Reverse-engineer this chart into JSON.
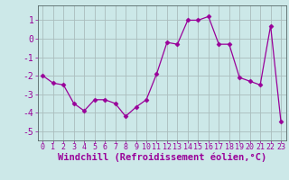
{
  "x": [
    0,
    1,
    2,
    3,
    4,
    5,
    6,
    7,
    8,
    9,
    10,
    11,
    12,
    13,
    14,
    15,
    16,
    17,
    18,
    19,
    20,
    21,
    22,
    23
  ],
  "y": [
    -2.0,
    -2.4,
    -2.5,
    -3.5,
    -3.9,
    -3.3,
    -3.3,
    -3.5,
    -4.2,
    -3.7,
    -3.3,
    -1.9,
    -0.2,
    -0.3,
    1.0,
    1.0,
    1.2,
    -0.3,
    -0.3,
    -2.1,
    -2.3,
    -2.5,
    0.7,
    -4.5
  ],
  "line_color": "#990099",
  "marker": "D",
  "marker_size": 2.5,
  "bg_color": "#cce8e8",
  "grid_color": "#aabcbc",
  "xlabel": "Windchill (Refroidissement éolien,°C)",
  "ylim": [
    -5.5,
    1.8
  ],
  "xlim": [
    -0.5,
    23.5
  ],
  "yticks": [
    -5,
    -4,
    -3,
    -2,
    -1,
    0,
    1
  ],
  "xticks": [
    0,
    1,
    2,
    3,
    4,
    5,
    6,
    7,
    8,
    9,
    10,
    11,
    12,
    13,
    14,
    15,
    16,
    17,
    18,
    19,
    20,
    21,
    22,
    23
  ],
  "tick_color": "#990099",
  "label_color": "#990099",
  "xlabel_fontsize": 7.5,
  "ytick_fontsize": 7,
  "xtick_fontsize": 6
}
